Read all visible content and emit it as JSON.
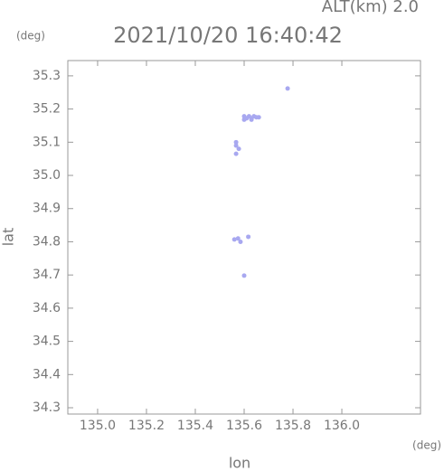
{
  "chart_data": {
    "type": "scatter",
    "title": "2021/10/20 16:40:42",
    "subtitle": "ALT(km) 2.0",
    "y_unit": "(deg)",
    "x_unit": "(deg)",
    "xlabel": "lon",
    "ylabel": "lat",
    "xlim": [
      134.878,
      136.322
    ],
    "ylim": [
      34.281,
      35.346
    ],
    "xticks": [
      {
        "value": 135.0,
        "label": "135.0"
      },
      135.2,
      135.4,
      135.6,
      135.8,
      {
        "value": 136.0,
        "label": "136.0"
      }
    ],
    "yticks": [
      34.3,
      34.4,
      34.5,
      34.6,
      34.7,
      34.8,
      34.9,
      {
        "value": 35.0,
        "label": "35.0"
      },
      35.1,
      35.2,
      35.3
    ],
    "color": "#a8a8f0",
    "x": [
      135.778,
      135.6,
      135.61,
      135.62,
      135.63,
      135.64,
      135.65,
      135.66,
      135.6,
      135.63,
      135.567,
      135.578,
      135.567,
      135.567,
      135.56,
      135.575,
      135.585,
      135.617,
      135.6
    ],
    "y": [
      35.262,
      35.178,
      35.172,
      35.178,
      35.172,
      35.178,
      35.175,
      35.175,
      35.168,
      35.168,
      35.1,
      35.08,
      35.065,
      35.09,
      34.807,
      34.81,
      34.8,
      34.815,
      34.698
    ]
  }
}
